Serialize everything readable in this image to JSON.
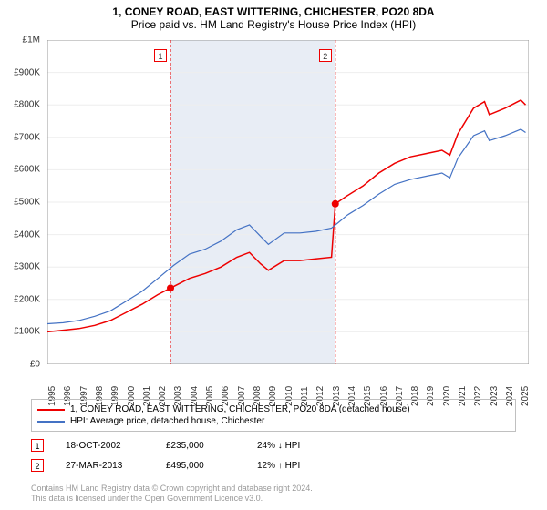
{
  "title": "1, CONEY ROAD, EAST WITTERING, CHICHESTER, PO20 8DA",
  "subtitle": "Price paid vs. HM Land Registry's House Price Index (HPI)",
  "chart": {
    "type": "line",
    "background_color": "#ffffff",
    "grid_color": "#eeeeee",
    "shade_color": "#e8edf5",
    "xlim": [
      1995,
      2025.5
    ],
    "ylim": [
      0,
      1000000
    ],
    "x_ticks": [
      1995,
      1996,
      1997,
      1998,
      1999,
      2000,
      2001,
      2002,
      2003,
      2004,
      2005,
      2006,
      2007,
      2008,
      2009,
      2010,
      2011,
      2012,
      2013,
      2014,
      2015,
      2016,
      2017,
      2018,
      2019,
      2020,
      2021,
      2022,
      2023,
      2024,
      2025
    ],
    "y_ticks": [
      {
        "v": 0,
        "label": "£0"
      },
      {
        "v": 100000,
        "label": "£100K"
      },
      {
        "v": 200000,
        "label": "£200K"
      },
      {
        "v": 300000,
        "label": "£300K"
      },
      {
        "v": 400000,
        "label": "£400K"
      },
      {
        "v": 500000,
        "label": "£500K"
      },
      {
        "v": 600000,
        "label": "£600K"
      },
      {
        "v": 700000,
        "label": "£700K"
      },
      {
        "v": 800000,
        "label": "£800K"
      },
      {
        "v": 900000,
        "label": "£900K"
      },
      {
        "v": 1000000,
        "label": "£1M"
      }
    ],
    "shade_range": [
      2002.8,
      2013.24
    ],
    "series": [
      {
        "name": "property",
        "color": "#ee0000",
        "width": 1.5,
        "points": [
          [
            1995,
            100000
          ],
          [
            1996,
            105000
          ],
          [
            1997,
            110000
          ],
          [
            1998,
            120000
          ],
          [
            1999,
            135000
          ],
          [
            2000,
            160000
          ],
          [
            2001,
            185000
          ],
          [
            2002,
            215000
          ],
          [
            2002.8,
            235000
          ],
          [
            2003,
            240000
          ],
          [
            2004,
            265000
          ],
          [
            2005,
            280000
          ],
          [
            2006,
            300000
          ],
          [
            2007,
            330000
          ],
          [
            2007.8,
            345000
          ],
          [
            2008.5,
            310000
          ],
          [
            2009,
            290000
          ],
          [
            2010,
            320000
          ],
          [
            2011,
            320000
          ],
          [
            2012,
            325000
          ],
          [
            2013,
            330000
          ],
          [
            2013.24,
            495000
          ],
          [
            2014,
            520000
          ],
          [
            2015,
            550000
          ],
          [
            2016,
            590000
          ],
          [
            2017,
            620000
          ],
          [
            2018,
            640000
          ],
          [
            2019,
            650000
          ],
          [
            2020,
            660000
          ],
          [
            2020.5,
            645000
          ],
          [
            2021,
            710000
          ],
          [
            2022,
            790000
          ],
          [
            2022.7,
            810000
          ],
          [
            2023,
            770000
          ],
          [
            2024,
            790000
          ],
          [
            2025,
            815000
          ],
          [
            2025.3,
            800000
          ]
        ]
      },
      {
        "name": "hpi",
        "color": "#4472c4",
        "width": 1.2,
        "points": [
          [
            1995,
            125000
          ],
          [
            1996,
            128000
          ],
          [
            1997,
            135000
          ],
          [
            1998,
            148000
          ],
          [
            1999,
            165000
          ],
          [
            2000,
            195000
          ],
          [
            2001,
            225000
          ],
          [
            2002,
            265000
          ],
          [
            2003,
            305000
          ],
          [
            2004,
            340000
          ],
          [
            2005,
            355000
          ],
          [
            2006,
            380000
          ],
          [
            2007,
            415000
          ],
          [
            2007.8,
            430000
          ],
          [
            2008.5,
            395000
          ],
          [
            2009,
            370000
          ],
          [
            2010,
            405000
          ],
          [
            2011,
            405000
          ],
          [
            2012,
            410000
          ],
          [
            2013,
            420000
          ],
          [
            2013.5,
            440000
          ],
          [
            2014,
            460000
          ],
          [
            2015,
            490000
          ],
          [
            2016,
            525000
          ],
          [
            2017,
            555000
          ],
          [
            2018,
            570000
          ],
          [
            2019,
            580000
          ],
          [
            2020,
            590000
          ],
          [
            2020.5,
            575000
          ],
          [
            2021,
            635000
          ],
          [
            2022,
            705000
          ],
          [
            2022.7,
            720000
          ],
          [
            2023,
            690000
          ],
          [
            2024,
            705000
          ],
          [
            2025,
            725000
          ],
          [
            2025.3,
            715000
          ]
        ]
      }
    ],
    "vlines": [
      {
        "x": 2002.8,
        "label": "1"
      },
      {
        "x": 2013.24,
        "label": "2"
      }
    ],
    "sale_markers": [
      {
        "x": 2002.8,
        "y": 235000,
        "color": "#ee0000"
      },
      {
        "x": 2013.24,
        "y": 495000,
        "color": "#ee0000"
      }
    ]
  },
  "legend": {
    "items": [
      {
        "label": "1, CONEY ROAD, EAST WITTERING, CHICHESTER, PO20 8DA (detached house)",
        "color": "#ee0000"
      },
      {
        "label": "HPI: Average price, detached house, Chichester",
        "color": "#4472c4"
      }
    ]
  },
  "events": [
    {
      "n": "1",
      "date": "18-OCT-2002",
      "price": "£235,000",
      "hpi": "24% ↓ HPI"
    },
    {
      "n": "2",
      "date": "27-MAR-2013",
      "price": "£495,000",
      "hpi": "12% ↑ HPI"
    }
  ],
  "footer": {
    "line1": "Contains HM Land Registry data © Crown copyright and database right 2024.",
    "line2": "This data is licensed under the Open Government Licence v3.0."
  }
}
